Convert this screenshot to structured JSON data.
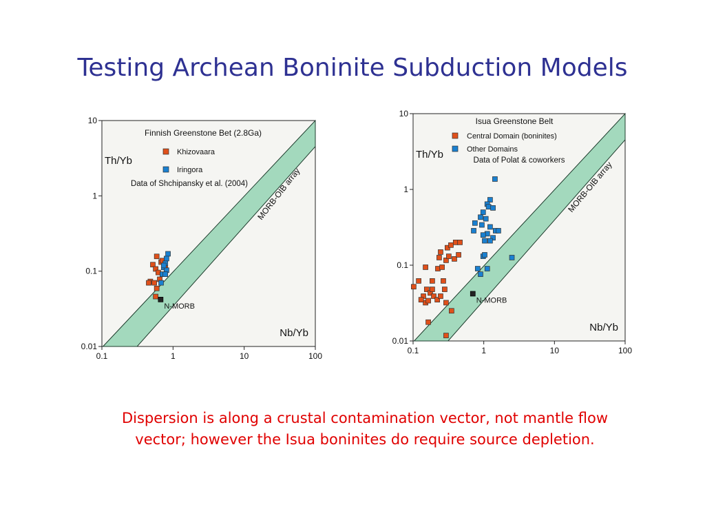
{
  "title": "Testing Archean Boninite Subduction Models",
  "caption": [
    "Dispersion is along a crustal contamination vector, not mantle flow",
    "vector; however the Isua boninites do require source depletion."
  ],
  "chart_data": [
    {
      "type": "scatter",
      "legend_title": "Finnish Greenstone Bet (2.8Ga)",
      "annotation": "Data of Shchipansky et al. (2004)",
      "x_label": "Nb/Yb",
      "y_label": "Th/Yb",
      "band_label": "MORB-OIB array",
      "xscale": "log",
      "yscale": "log",
      "xlim": [
        0.1,
        100
      ],
      "ylim": [
        0.01,
        10
      ],
      "xticks": [
        0.1,
        1,
        10,
        100
      ],
      "yticks": [
        0.01,
        0.1,
        1,
        10
      ],
      "series": [
        {
          "name": "Khizovaara",
          "color": "#e0501a",
          "x": [
            0.59,
            0.52,
            0.68,
            0.57,
            0.62,
            0.71,
            0.48,
            0.545,
            0.65,
            0.59,
            0.78,
            0.57,
            0.455,
            0.71
          ],
          "y": [
            0.157,
            0.122,
            0.132,
            0.107,
            0.096,
            0.091,
            0.073,
            0.07,
            0.078,
            0.059,
            0.112,
            0.046,
            0.07,
            0.138
          ]
        },
        {
          "name": "Iringora",
          "color": "#1a80d0",
          "x": [
            0.85,
            0.81,
            0.78,
            0.74,
            0.81,
            0.71,
            0.78,
            0.68,
            0.74
          ],
          "y": [
            0.17,
            0.147,
            0.127,
            0.112,
            0.103,
            0.091,
            0.091,
            0.07,
            0.119
          ]
        }
      ],
      "reference_point": {
        "label": "N-MORB",
        "color": "#222222",
        "x": 0.67,
        "y": 0.042
      }
    },
    {
      "type": "scatter",
      "legend_title": "Isua Greenstone Belt",
      "annotation": "Data of Polat & coworkers",
      "x_label": "Nb/Yb",
      "y_label": "Th/Yb",
      "band_label": "MORB-OIB array",
      "xscale": "log",
      "yscale": "log",
      "xlim": [
        0.1,
        100
      ],
      "ylim": [
        0.01,
        10
      ],
      "xticks": [
        0.1,
        1,
        10,
        100
      ],
      "yticks": [
        0.01,
        0.1,
        1,
        10
      ],
      "series": [
        {
          "name": "Central Domain (boninites)",
          "color": "#e0501a",
          "x": [
            0.102,
            0.12,
            0.156,
            0.14,
            0.175,
            0.196,
            0.22,
            0.245,
            0.15,
            0.13,
            0.164,
            0.187,
            0.224,
            0.257,
            0.234,
            0.293,
            0.32,
            0.384,
            0.306,
            0.343,
            0.4,
            0.46,
            0.268,
            0.28,
            0.293,
            0.35,
            0.164,
            0.293,
            0.15,
            0.245,
            0.187,
            0.44
          ],
          "y": [
            0.052,
            0.062,
            0.048,
            0.039,
            0.043,
            0.039,
            0.035,
            0.039,
            0.032,
            0.035,
            0.034,
            0.062,
            0.09,
            0.094,
            0.126,
            0.116,
            0.131,
            0.121,
            0.17,
            0.184,
            0.2,
            0.2,
            0.062,
            0.048,
            0.032,
            0.025,
            0.0177,
            0.0118,
            0.094,
            0.149,
            0.048,
            0.137
          ]
        },
        {
          "name": "Other Domains",
          "color": "#1a80d0",
          "x": [
            1.44,
            1.23,
            1.12,
            1.17,
            1.35,
            0.98,
            0.9,
            1.07,
            0.75,
            0.94,
            1.23,
            1.47,
            1.12,
            0.98,
            1.35,
            1.03,
            1.23,
            1.61,
            0.72,
            0.82,
            0.9,
            0.98,
            1.12,
            2.5,
            1.03
          ],
          "y": [
            1.37,
            0.73,
            0.64,
            0.59,
            0.57,
            0.5,
            0.43,
            0.41,
            0.36,
            0.34,
            0.32,
            0.285,
            0.26,
            0.25,
            0.23,
            0.21,
            0.21,
            0.285,
            0.285,
            0.09,
            0.076,
            0.131,
            0.09,
            0.126,
            0.137
          ]
        }
      ],
      "reference_point": {
        "label": "N-MORB",
        "color": "#222222",
        "x": 0.7,
        "y": 0.042
      }
    }
  ]
}
